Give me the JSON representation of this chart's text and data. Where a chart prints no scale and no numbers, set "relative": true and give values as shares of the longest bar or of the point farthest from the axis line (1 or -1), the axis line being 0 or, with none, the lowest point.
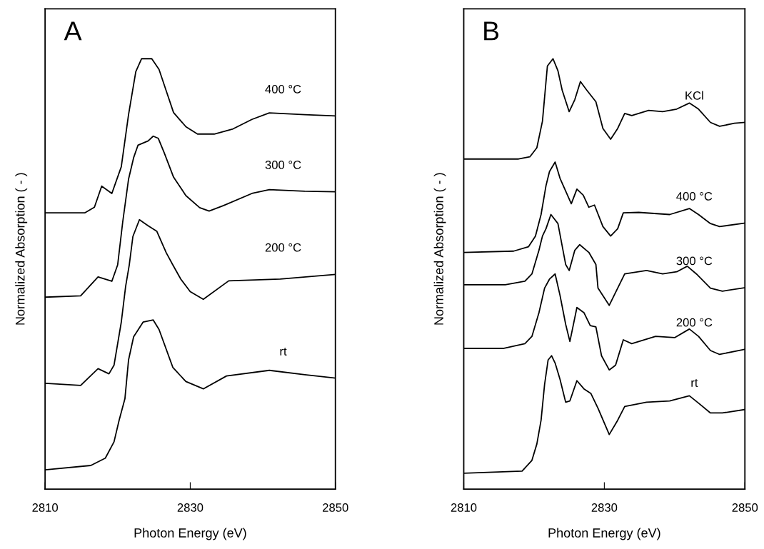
{
  "chart_data": [
    {
      "type": "line",
      "annotations": [
        "A"
      ],
      "xlabel": "Photon Energy (eV)",
      "ylabel": "Normalized Absorption ( - )",
      "relative": true,
      "xlim": [
        2810,
        2850
      ],
      "xticks": [
        2810,
        2830,
        2850
      ],
      "tick_labels": "x",
      "series": [
        {
          "name": "400 °C",
          "color": "#000000",
          "x": [
            2810,
            2815.5,
            2816.8,
            2817.8,
            2819.2,
            2820.5,
            2821.5,
            2822.5,
            2823.3,
            2824.7,
            2825.7,
            2826.7,
            2827.7,
            2829.4,
            2831.0,
            2833.3,
            2835.9,
            2838.5,
            2840.9,
            2845.8,
            2850
          ],
          "values": [
            0.642,
            0.642,
            0.655,
            0.704,
            0.687,
            0.749,
            0.87,
            0.97,
            1.0,
            1.0,
            0.975,
            0.925,
            0.875,
            0.842,
            0.825,
            0.825,
            0.837,
            0.859,
            0.874,
            0.87,
            0.867
          ]
        },
        {
          "name": "300 °C",
          "color": "#000000",
          "x": [
            2810,
            2814.9,
            2817.3,
            2819.2,
            2820.0,
            2820.7,
            2821.5,
            2822.2,
            2822.8,
            2824.2,
            2824.9,
            2825.6,
            2826.4,
            2827.7,
            2829.4,
            2831.3,
            2832.6,
            2834.6,
            2838.5,
            2840.9,
            2845.8,
            2850
          ],
          "values": [
            0.446,
            0.449,
            0.493,
            0.483,
            0.521,
            0.621,
            0.72,
            0.77,
            0.799,
            0.809,
            0.82,
            0.815,
            0.782,
            0.725,
            0.682,
            0.654,
            0.646,
            0.659,
            0.687,
            0.696,
            0.692,
            0.691
          ]
        },
        {
          "name": "200 °C",
          "color": "#000000",
          "x": [
            2810,
            2814.9,
            2817.3,
            2818.8,
            2819.5,
            2820.5,
            2821.1,
            2821.6,
            2822.1,
            2823.0,
            2824.2,
            2825.4,
            2826.7,
            2827.6,
            2828.7,
            2830.0,
            2831.8,
            2835.3,
            2842.4,
            2850
          ],
          "values": [
            0.246,
            0.241,
            0.28,
            0.268,
            0.288,
            0.388,
            0.471,
            0.521,
            0.587,
            0.626,
            0.612,
            0.599,
            0.549,
            0.521,
            0.488,
            0.459,
            0.441,
            0.484,
            0.488,
            0.499
          ]
        },
        {
          "name": "rt",
          "color": "#000000",
          "x": [
            2810,
            2816.3,
            2818.3,
            2819.5,
            2820.2,
            2821.0,
            2821.5,
            2822.2,
            2823.5,
            2824.9,
            2825.7,
            2827.6,
            2829.4,
            2831.8,
            2835.0,
            2840.9,
            2845.8,
            2850
          ],
          "values": [
            0.045,
            0.055,
            0.072,
            0.11,
            0.16,
            0.21,
            0.3,
            0.354,
            0.388,
            0.393,
            0.371,
            0.283,
            0.25,
            0.233,
            0.263,
            0.276,
            0.266,
            0.258
          ]
        }
      ]
    },
    {
      "type": "line",
      "annotations": [
        "B"
      ],
      "xlabel": "Photon Energy (eV)",
      "ylabel": "Normalized Absorption ( - )",
      "relative": true,
      "xlim": [
        2810,
        2850
      ],
      "xticks": [
        2810,
        2830,
        2850
      ],
      "tick_labels": "x",
      "series": [
        {
          "name": "KCl",
          "color": "#000000",
          "x": [
            2810,
            2817.8,
            2819.4,
            2820.4,
            2821.2,
            2821.9,
            2822.7,
            2823.4,
            2824.0,
            2825.0,
            2825.8,
            2826.6,
            2827.5,
            2828.8,
            2829.8,
            2830.9,
            2831.9,
            2832.9,
            2833.9,
            2836.3,
            2838.3,
            2840.3,
            2842.1,
            2843.4,
            2845.1,
            2846.4,
            2848.5,
            2850
          ],
          "values": [
            0.767,
            0.767,
            0.772,
            0.793,
            0.855,
            0.983,
            1.0,
            0.972,
            0.927,
            0.877,
            0.905,
            0.947,
            0.927,
            0.9,
            0.838,
            0.813,
            0.838,
            0.873,
            0.868,
            0.88,
            0.877,
            0.883,
            0.897,
            0.883,
            0.852,
            0.843,
            0.85,
            0.852
          ]
        },
        {
          "name": "400 °C",
          "color": "#000000",
          "x": [
            2810,
            2817.1,
            2819.2,
            2820.2,
            2821.0,
            2821.7,
            2822.2,
            2823.0,
            2823.7,
            2825.3,
            2826.1,
            2827.0,
            2827.8,
            2828.6,
            2829.8,
            2830.9,
            2831.9,
            2832.7,
            2834.9,
            2839.3,
            2842.1,
            2843.4,
            2845.1,
            2846.4,
            2850
          ],
          "values": [
            0.55,
            0.553,
            0.563,
            0.588,
            0.638,
            0.705,
            0.738,
            0.76,
            0.722,
            0.663,
            0.697,
            0.683,
            0.655,
            0.66,
            0.61,
            0.588,
            0.605,
            0.642,
            0.643,
            0.638,
            0.652,
            0.638,
            0.617,
            0.61,
            0.618
          ]
        },
        {
          "name": "300 °C",
          "color": "#000000",
          "x": [
            2810,
            2815.9,
            2818.7,
            2819.7,
            2820.7,
            2821.2,
            2821.7,
            2822.4,
            2823.4,
            2824.5,
            2825.0,
            2825.8,
            2826.5,
            2827.8,
            2828.8,
            2829.1,
            2830.7,
            2831.9,
            2832.9,
            2836.0,
            2838.3,
            2840.3,
            2841.8,
            2843.1,
            2845.1,
            2846.8,
            2850
          ],
          "values": [
            0.475,
            0.475,
            0.483,
            0.5,
            0.555,
            0.588,
            0.605,
            0.638,
            0.617,
            0.522,
            0.508,
            0.555,
            0.568,
            0.55,
            0.522,
            0.467,
            0.427,
            0.467,
            0.5,
            0.508,
            0.5,
            0.505,
            0.518,
            0.5,
            0.467,
            0.46,
            0.468
          ]
        },
        {
          "name": "200 °C",
          "color": "#000000",
          "x": [
            2810,
            2815.6,
            2818.7,
            2819.7,
            2820.7,
            2821.5,
            2822.2,
            2823.0,
            2823.7,
            2824.5,
            2825.1,
            2826.1,
            2827.1,
            2828.0,
            2828.8,
            2829.6,
            2830.7,
            2831.6,
            2832.7,
            2833.9,
            2837.3,
            2840.0,
            2842.1,
            2843.4,
            2845.1,
            2846.4,
            2850
          ],
          "values": [
            0.327,
            0.327,
            0.338,
            0.355,
            0.41,
            0.467,
            0.488,
            0.5,
            0.45,
            0.383,
            0.343,
            0.422,
            0.41,
            0.38,
            0.377,
            0.31,
            0.277,
            0.288,
            0.347,
            0.338,
            0.355,
            0.352,
            0.372,
            0.355,
            0.322,
            0.313,
            0.325
          ]
        },
        {
          "name": "rt",
          "color": "#000000",
          "x": [
            2810,
            2818.3,
            2819.7,
            2820.4,
            2821.0,
            2821.5,
            2822.0,
            2822.5,
            2823.0,
            2823.7,
            2824.5,
            2825.1,
            2826.1,
            2827.1,
            2828.1,
            2829.1,
            2830.7,
            2831.9,
            2832.9,
            2836.0,
            2839.3,
            2842.1,
            2843.4,
            2845.1,
            2846.8,
            2850
          ],
          "values": [
            0.037,
            0.042,
            0.067,
            0.105,
            0.16,
            0.243,
            0.3,
            0.31,
            0.293,
            0.255,
            0.202,
            0.205,
            0.252,
            0.233,
            0.222,
            0.188,
            0.127,
            0.16,
            0.192,
            0.202,
            0.205,
            0.217,
            0.2,
            0.177,
            0.177,
            0.185
          ]
        }
      ]
    }
  ]
}
